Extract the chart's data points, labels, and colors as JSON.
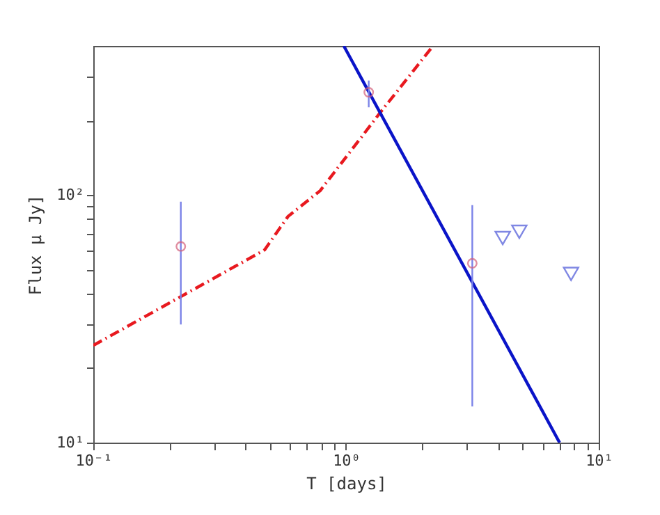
{
  "chart_data": {
    "type": "scatter",
    "xlabel": "T [days]",
    "ylabel": "Flux μ Jy]",
    "log": "xy",
    "grid": false,
    "xlim": [
      0.1,
      10
    ],
    "ylim": [
      10,
      400
    ],
    "xticks": [
      {
        "value": 0.1,
        "label": "10⁻¹"
      },
      {
        "value": 0.2,
        "label": null
      },
      {
        "value": 0.3,
        "label": null
      },
      {
        "value": 0.4,
        "label": null
      },
      {
        "value": 0.5,
        "label": null
      },
      {
        "value": 0.6,
        "label": null
      },
      {
        "value": 0.7,
        "label": null
      },
      {
        "value": 0.8,
        "label": null
      },
      {
        "value": 0.9,
        "label": null
      },
      {
        "value": 1,
        "label": "10⁰"
      },
      {
        "value": 2,
        "label": null
      },
      {
        "value": 3,
        "label": null
      },
      {
        "value": 4,
        "label": null
      },
      {
        "value": 5,
        "label": null
      },
      {
        "value": 6,
        "label": null
      },
      {
        "value": 7,
        "label": null
      },
      {
        "value": 8,
        "label": null
      },
      {
        "value": 9,
        "label": null
      },
      {
        "value": 10,
        "label": "10¹"
      }
    ],
    "yticks": [
      {
        "value": 10,
        "label": "10¹"
      },
      {
        "value": 20,
        "label": null
      },
      {
        "value": 30,
        "label": null
      },
      {
        "value": 40,
        "label": null
      },
      {
        "value": 50,
        "label": null
      },
      {
        "value": 60,
        "label": null
      },
      {
        "value": 70,
        "label": null
      },
      {
        "value": 80,
        "label": null
      },
      {
        "value": 90,
        "label": null
      },
      {
        "value": 100,
        "label": "10²"
      },
      {
        "value": 200,
        "label": null
      },
      {
        "value": 300,
        "label": null
      }
    ],
    "series": [
      {
        "type": "line",
        "color": "#e8191f",
        "line_style": "dashed",
        "marker": "none",
        "x": [
          0.1,
          0.476,
          0.59,
          0.79,
          1.36,
          2.21
        ],
        "values": [
          24.7,
          60,
          82,
          104,
          214,
          400
        ]
      },
      {
        "type": "line",
        "color": "#0a14c8",
        "line_style": "solid",
        "marker": "none",
        "x": [
          0.98,
          7.0
        ],
        "values": [
          400,
          10
        ]
      },
      {
        "type": "scatter",
        "color": "#d4607a",
        "marker": "circle",
        "x": [
          0.222,
          1.23,
          3.16
        ],
        "values": [
          62,
          260,
          53
        ],
        "errors": [
          [
            30,
            94
          ],
          [
            226,
            290
          ],
          [
            14,
            91
          ]
        ]
      },
      {
        "type": "scatter",
        "color": "#4a55d8",
        "marker": "triangle",
        "x": [
          4.17,
          4.85,
          7.77
        ],
        "values": [
          67,
          71,
          48
        ]
      }
    ]
  }
}
